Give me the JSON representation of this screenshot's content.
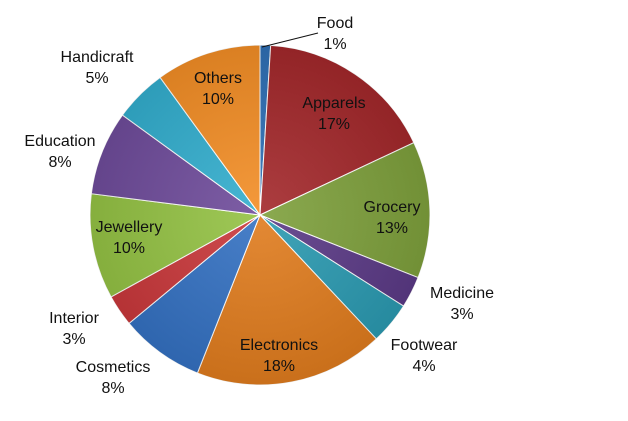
{
  "chart_data": {
    "type": "pie",
    "title": "",
    "slices": [
      {
        "label": "Food",
        "value": 1,
        "display": "1%",
        "color": "#2E6FB5"
      },
      {
        "label": "Apparels",
        "value": 17,
        "display": "17%",
        "color": "#A3282B"
      },
      {
        "label": "Grocery",
        "value": 13,
        "display": "13%",
        "color": "#7EA03C"
      },
      {
        "label": "Medicine",
        "value": 3,
        "display": "3%",
        "color": "#5B3A86"
      },
      {
        "label": "Footwear",
        "value": 4,
        "display": "4%",
        "color": "#2B9AB1"
      },
      {
        "label": "Electronics",
        "value": 18,
        "display": "18%",
        "color": "#E07C1E"
      },
      {
        "label": "Cosmetics",
        "value": 8,
        "display": "8%",
        "color": "#3471C2"
      },
      {
        "label": "Interior",
        "value": 3,
        "display": "3%",
        "color": "#C9383B"
      },
      {
        "label": "Jewellery",
        "value": 10,
        "display": "10%",
        "color": "#94C244"
      },
      {
        "label": "Education",
        "value": 8,
        "display": "8%",
        "color": "#6F4C9B"
      },
      {
        "label": "Handicraft",
        "value": 5,
        "display": "5%",
        "color": "#33AECE"
      },
      {
        "label": "Others",
        "value": 10,
        "display": "10%",
        "color": "#F38E26"
      }
    ],
    "legend": "none",
    "label_placement": "mixed-inside-outside"
  }
}
